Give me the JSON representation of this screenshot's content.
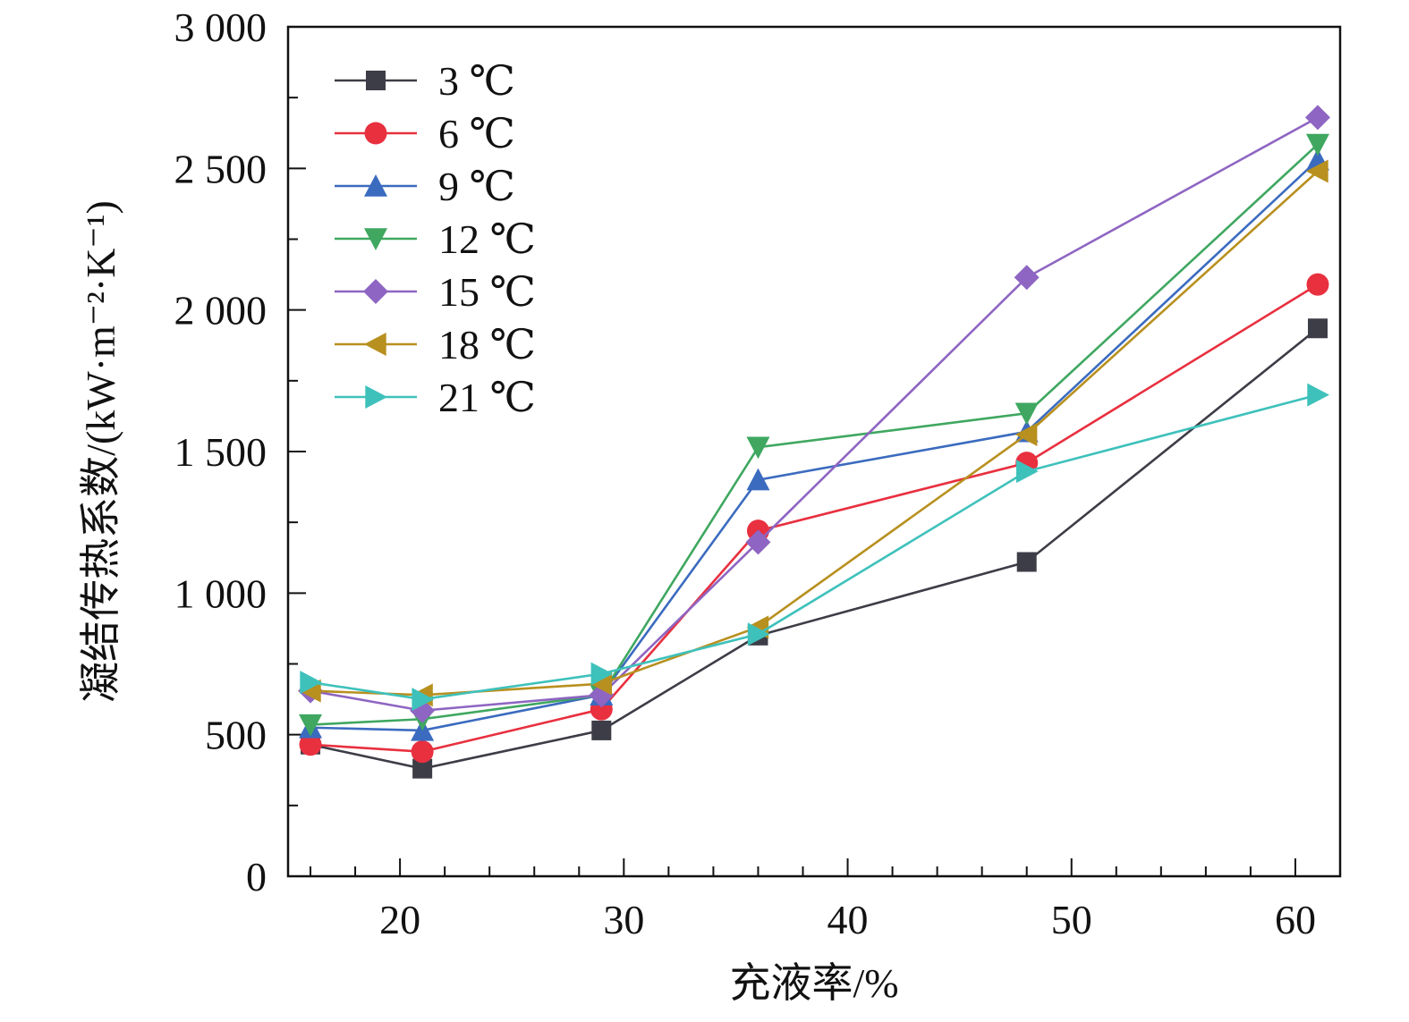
{
  "chart_data": {
    "type": "line",
    "xlabel": "充液率/%",
    "ylabel": "凝结传热系数/(kW·m⁻²·K⁻¹)",
    "xlim": [
      15,
      62
    ],
    "ylim": [
      0,
      3000
    ],
    "x_ticks": [
      {
        "value": 20,
        "label": "20"
      },
      {
        "value": 30,
        "label": "30"
      },
      {
        "value": 40,
        "label": "40"
      },
      {
        "value": 50,
        "label": "50"
      },
      {
        "value": 60,
        "label": "60"
      }
    ],
    "y_ticks": [
      {
        "value": 0,
        "label": "0"
      },
      {
        "value": 500,
        "label": "500"
      },
      {
        "value": 1000,
        "label": "1 000"
      },
      {
        "value": 1500,
        "label": "1 500"
      },
      {
        "value": 2000,
        "label": "2 000"
      },
      {
        "value": 2500,
        "label": "2 500"
      },
      {
        "value": 3000,
        "label": "3 000"
      }
    ],
    "x_minor_step": 2,
    "y_minor_step": 250,
    "grid": false,
    "legend_position": "top-left",
    "x": [
      16,
      21,
      29,
      36,
      48,
      61
    ],
    "series": [
      {
        "name": "3 ℃",
        "color": "#3d3d47",
        "marker": "square",
        "values": [
          465,
          380,
          515,
          850,
          1110,
          1935
        ]
      },
      {
        "name": "6 ℃",
        "color": "#e8303f",
        "marker": "circle",
        "values": [
          465,
          440,
          590,
          1220,
          1460,
          2090
        ]
      },
      {
        "name": "9 ℃",
        "color": "#3b6bbf",
        "marker": "triangle-up",
        "values": [
          525,
          515,
          640,
          1400,
          1570,
          2530
        ]
      },
      {
        "name": "12 ℃",
        "color": "#3fa760",
        "marker": "triangle-down",
        "values": [
          535,
          555,
          640,
          1515,
          1635,
          2585
        ]
      },
      {
        "name": "15 ℃",
        "color": "#8e65c2",
        "marker": "diamond",
        "values": [
          655,
          585,
          640,
          1180,
          2115,
          2680
        ]
      },
      {
        "name": "18 ℃",
        "color": "#b8901f",
        "marker": "triangle-left",
        "values": [
          655,
          640,
          680,
          880,
          1560,
          2490
        ]
      },
      {
        "name": "21 ℃",
        "color": "#3ec1bb",
        "marker": "triangle-right",
        "values": [
          685,
          625,
          715,
          855,
          1430,
          1700
        ]
      }
    ]
  }
}
